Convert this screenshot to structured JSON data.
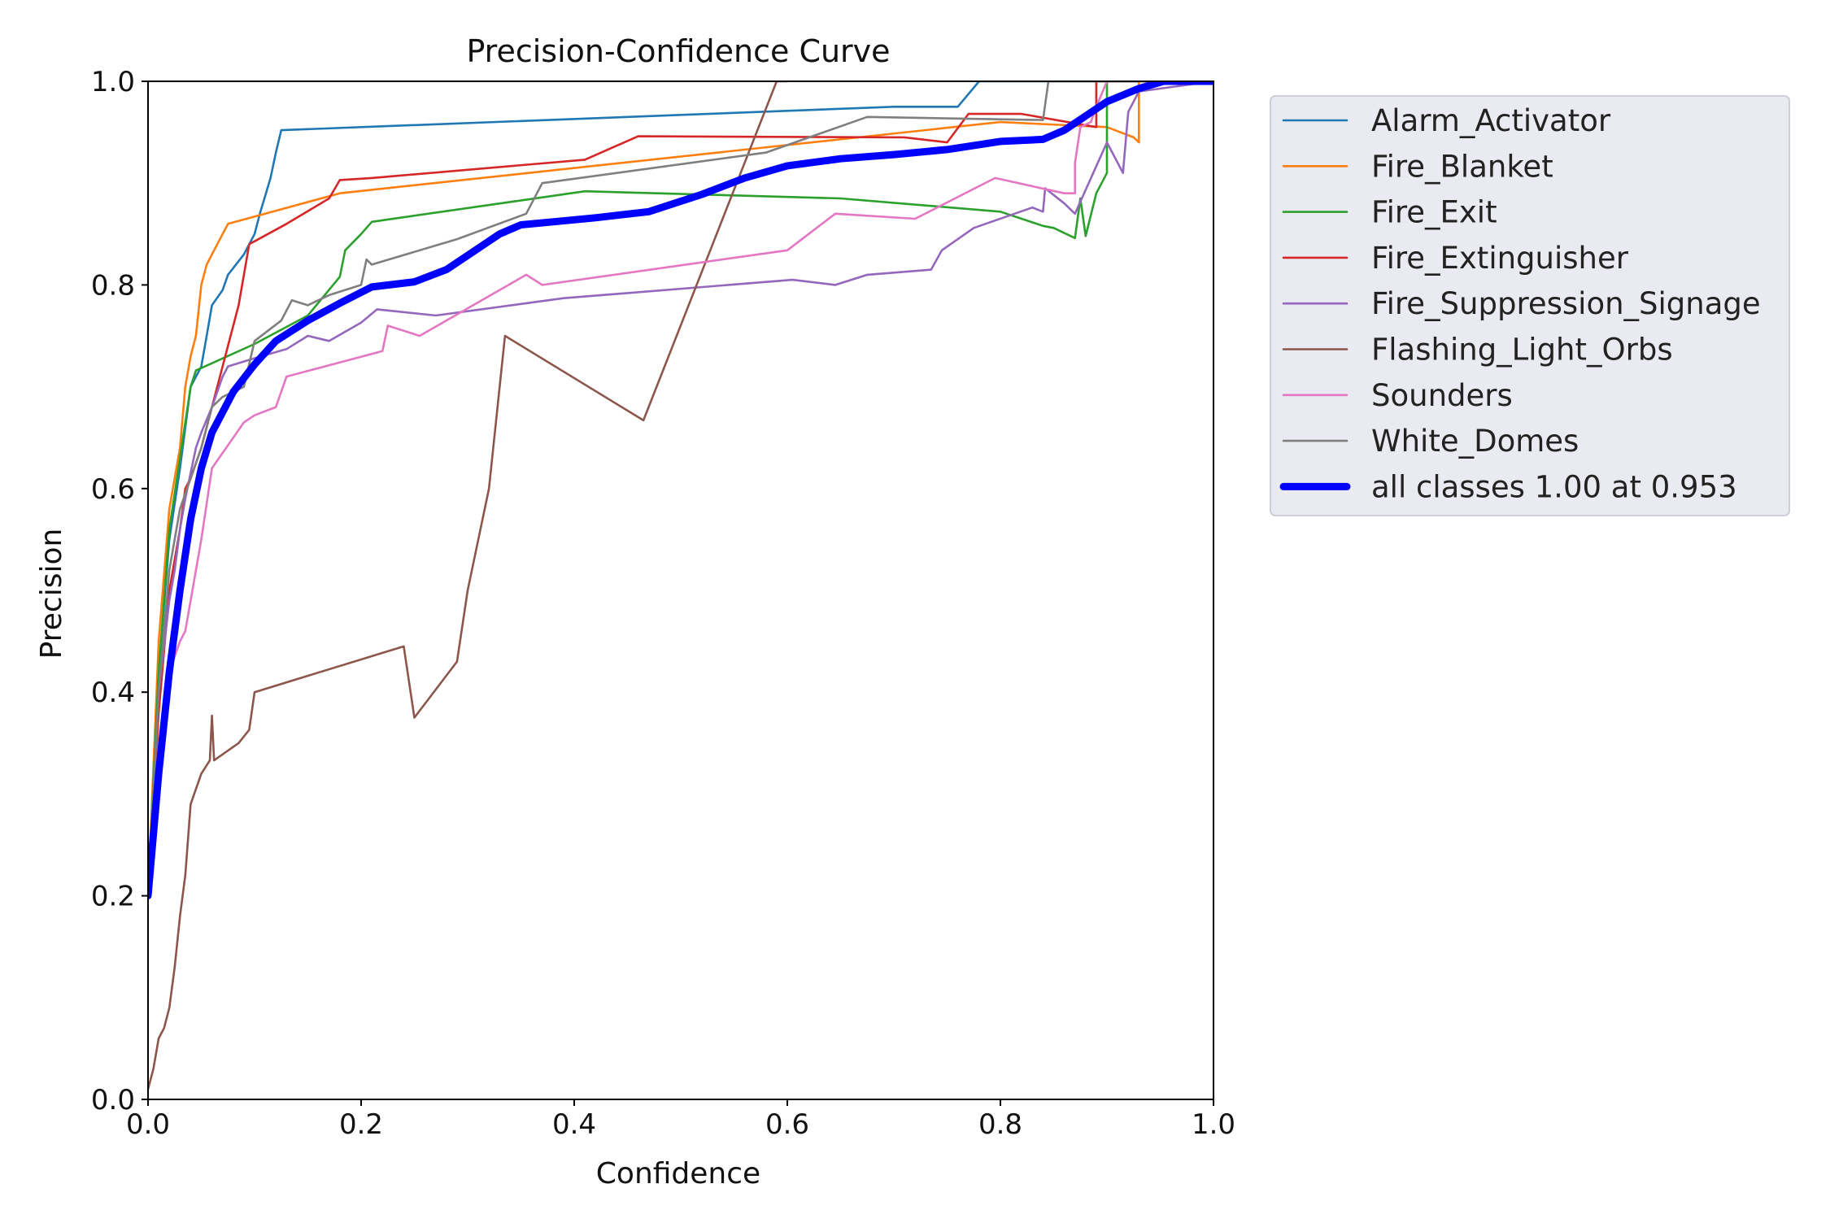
{
  "chart_data": {
    "type": "line",
    "title": "Precision-Confidence Curve",
    "xlabel": "Confidence",
    "ylabel": "Precision",
    "xlim": [
      0,
      1
    ],
    "ylim": [
      0,
      1
    ],
    "xticks": [
      "0.0",
      "0.2",
      "0.4",
      "0.6",
      "0.8",
      "1.0"
    ],
    "yticks": [
      "0.0",
      "0.2",
      "0.4",
      "0.6",
      "0.8",
      "1.0"
    ],
    "grid": false,
    "legend_position": "outside right top",
    "series": [
      {
        "name": "Alarm_Activator",
        "color": "#1f77b4",
        "x": [
          0.0,
          0.01,
          0.02,
          0.03,
          0.04,
          0.05,
          0.055,
          0.06,
          0.07,
          0.075,
          0.09,
          0.1,
          0.105,
          0.115,
          0.12,
          0.125,
          0.7,
          0.76,
          0.78,
          1.0
        ],
        "y": [
          0.2,
          0.42,
          0.55,
          0.62,
          0.7,
          0.72,
          0.75,
          0.78,
          0.795,
          0.81,
          0.83,
          0.85,
          0.87,
          0.905,
          0.93,
          0.952,
          0.975,
          0.975,
          1.0,
          1.0
        ]
      },
      {
        "name": "Fire_Blanket",
        "color": "#ff7f0e",
        "x": [
          0.0,
          0.01,
          0.02,
          0.03,
          0.035,
          0.04,
          0.045,
          0.05,
          0.055,
          0.06,
          0.07,
          0.075,
          0.18,
          0.8,
          0.9,
          0.925,
          0.93,
          0.93,
          1.0
        ],
        "y": [
          0.2,
          0.45,
          0.58,
          0.64,
          0.7,
          0.73,
          0.75,
          0.8,
          0.82,
          0.83,
          0.85,
          0.86,
          0.89,
          0.96,
          0.955,
          0.945,
          0.94,
          1.0,
          1.0
        ]
      },
      {
        "name": "Fire_Exit",
        "color": "#2ca02c",
        "x": [
          0.0,
          0.01,
          0.02,
          0.03,
          0.04,
          0.045,
          0.1,
          0.15,
          0.18,
          0.185,
          0.2,
          0.21,
          0.41,
          0.65,
          0.8,
          0.84,
          0.85,
          0.87,
          0.875,
          0.88,
          0.89,
          0.9,
          0.9,
          1.0
        ],
        "y": [
          0.2,
          0.42,
          0.56,
          0.63,
          0.7,
          0.716,
          0.742,
          0.77,
          0.808,
          0.834,
          0.85,
          0.862,
          0.892,
          0.885,
          0.872,
          0.858,
          0.856,
          0.846,
          0.885,
          0.848,
          0.89,
          0.91,
          1.0,
          1.0
        ]
      },
      {
        "name": "Fire_Extinguisher",
        "color": "#d62728",
        "x": [
          0.0,
          0.01,
          0.02,
          0.03,
          0.035,
          0.04,
          0.05,
          0.06,
          0.07,
          0.08,
          0.085,
          0.09,
          0.095,
          0.13,
          0.17,
          0.18,
          0.21,
          0.41,
          0.46,
          0.71,
          0.75,
          0.77,
          0.82,
          0.89,
          0.89,
          1.0
        ],
        "y": [
          0.2,
          0.38,
          0.5,
          0.56,
          0.6,
          0.61,
          0.64,
          0.68,
          0.72,
          0.76,
          0.78,
          0.81,
          0.84,
          0.86,
          0.885,
          0.903,
          0.905,
          0.923,
          0.946,
          0.945,
          0.94,
          0.968,
          0.968,
          0.955,
          1.0,
          1.0
        ]
      },
      {
        "name": "Fire_Suppression_Signage",
        "color": "#9467bd",
        "x": [
          0.0,
          0.01,
          0.02,
          0.025,
          0.03,
          0.035,
          0.045,
          0.05,
          0.06,
          0.07,
          0.075,
          0.1,
          0.13,
          0.15,
          0.17,
          0.2,
          0.215,
          0.27,
          0.39,
          0.605,
          0.645,
          0.675,
          0.735,
          0.745,
          0.775,
          0.83,
          0.84,
          0.842,
          0.86,
          0.87,
          0.9,
          0.915,
          0.92,
          0.93,
          1.0
        ],
        "y": [
          0.2,
          0.4,
          0.49,
          0.52,
          0.56,
          0.59,
          0.64,
          0.655,
          0.68,
          0.71,
          0.72,
          0.728,
          0.737,
          0.75,
          0.745,
          0.763,
          0.776,
          0.77,
          0.787,
          0.805,
          0.8,
          0.81,
          0.815,
          0.834,
          0.856,
          0.876,
          0.872,
          0.895,
          0.88,
          0.87,
          0.94,
          0.91,
          0.97,
          0.99,
          1.0
        ]
      },
      {
        "name": "Flashing_Light_Orbs",
        "color": "#8c564b",
        "x": [
          0.0,
          0.005,
          0.01,
          0.015,
          0.02,
          0.025,
          0.03,
          0.035,
          0.04,
          0.05,
          0.058,
          0.06,
          0.062,
          0.085,
          0.095,
          0.1,
          0.24,
          0.25,
          0.29,
          0.3,
          0.32,
          0.335,
          0.465,
          0.59,
          0.6
        ],
        "y": [
          0.01,
          0.03,
          0.06,
          0.07,
          0.09,
          0.13,
          0.18,
          0.22,
          0.29,
          0.32,
          0.333,
          0.377,
          0.333,
          0.35,
          0.363,
          0.4,
          0.445,
          0.375,
          0.43,
          0.5,
          0.6,
          0.75,
          0.667,
          1.0,
          1.0
        ]
      },
      {
        "name": "Sounders",
        "color": "#e377c2",
        "x": [
          0.0,
          0.01,
          0.02,
          0.03,
          0.035,
          0.04,
          0.05,
          0.06,
          0.07,
          0.08,
          0.09,
          0.1,
          0.12,
          0.13,
          0.22,
          0.225,
          0.255,
          0.355,
          0.37,
          0.6,
          0.645,
          0.72,
          0.795,
          0.86,
          0.87,
          0.87,
          0.875,
          0.885,
          0.89,
          0.9,
          1.0
        ],
        "y": [
          0.2,
          0.35,
          0.42,
          0.45,
          0.46,
          0.49,
          0.55,
          0.62,
          0.635,
          0.65,
          0.665,
          0.672,
          0.68,
          0.71,
          0.735,
          0.76,
          0.75,
          0.81,
          0.8,
          0.834,
          0.87,
          0.865,
          0.905,
          0.89,
          0.89,
          0.92,
          0.955,
          0.96,
          0.975,
          1.0,
          1.0
        ]
      },
      {
        "name": "White_Domes",
        "color": "#7f7f7f",
        "x": [
          0.0,
          0.01,
          0.02,
          0.03,
          0.04,
          0.05,
          0.06,
          0.07,
          0.08,
          0.09,
          0.1,
          0.125,
          0.135,
          0.15,
          0.17,
          0.2,
          0.205,
          0.21,
          0.29,
          0.355,
          0.37,
          0.58,
          0.675,
          0.84,
          0.845,
          0.855,
          1.0
        ],
        "y": [
          0.2,
          0.4,
          0.52,
          0.58,
          0.61,
          0.64,
          0.68,
          0.69,
          0.695,
          0.7,
          0.745,
          0.765,
          0.785,
          0.78,
          0.79,
          0.8,
          0.825,
          0.82,
          0.845,
          0.87,
          0.9,
          0.93,
          0.965,
          0.962,
          1.0,
          1.0,
          1.0
        ]
      },
      {
        "name": "all classes 1.00 at 0.953",
        "color": "#0000ff",
        "thick": true,
        "x": [
          0.0,
          0.01,
          0.02,
          0.03,
          0.04,
          0.05,
          0.06,
          0.08,
          0.1,
          0.12,
          0.15,
          0.18,
          0.21,
          0.25,
          0.28,
          0.3,
          0.33,
          0.35,
          0.38,
          0.42,
          0.47,
          0.52,
          0.56,
          0.6,
          0.65,
          0.7,
          0.75,
          0.8,
          0.84,
          0.86,
          0.88,
          0.9,
          0.93,
          0.953,
          1.0
        ],
        "y": [
          0.2,
          0.32,
          0.42,
          0.5,
          0.57,
          0.62,
          0.655,
          0.695,
          0.722,
          0.745,
          0.765,
          0.782,
          0.798,
          0.803,
          0.815,
          0.829,
          0.85,
          0.859,
          0.862,
          0.866,
          0.872,
          0.889,
          0.905,
          0.917,
          0.924,
          0.928,
          0.933,
          0.941,
          0.943,
          0.952,
          0.966,
          0.98,
          0.993,
          1.0,
          1.0
        ]
      }
    ]
  }
}
